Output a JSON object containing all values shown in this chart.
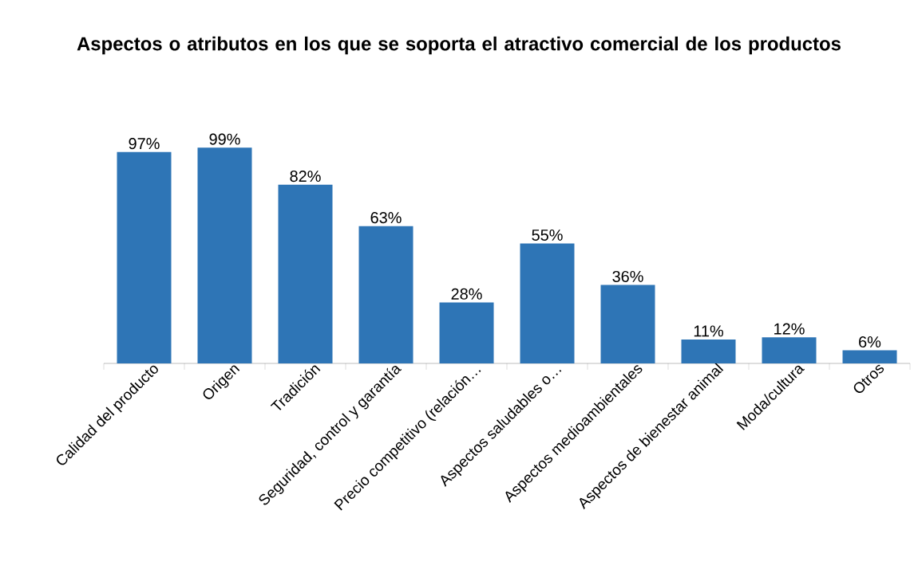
{
  "chart_data": {
    "type": "bar",
    "title": "Aspectos o atributos en los que se soporta el atractivo comercial de los productos",
    "categories": [
      "Calidad del producto",
      "Origen",
      "Tradición",
      "Seguridad, control y garantía",
      "Precio competitivo (relación…",
      "Aspectos saludables o…",
      "Aspectos medioambientales",
      "Aspectos de bienestar animal",
      "Moda/cultura",
      "Otros"
    ],
    "values": [
      97,
      99,
      82,
      63,
      28,
      55,
      36,
      11,
      12,
      6
    ],
    "value_labels": [
      "97%",
      "99%",
      "82%",
      "63%",
      "28%",
      "55%",
      "36%",
      "11%",
      "12%",
      "6%"
    ],
    "color": "#2e75b6"
  }
}
